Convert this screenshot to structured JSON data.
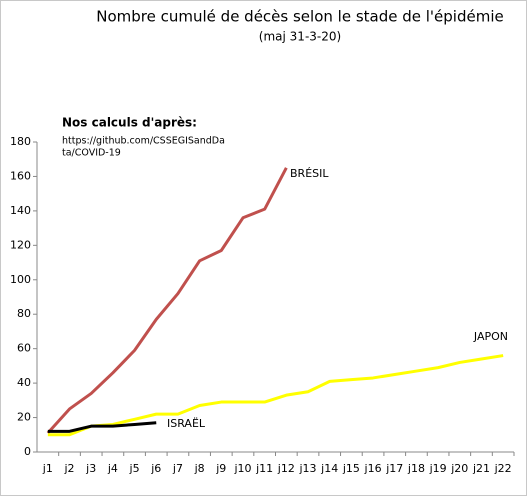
{
  "chart_data": {
    "type": "line",
    "title": "Nombre cumulé de décès selon le stade de l'épidémie",
    "subtitle": "(maj 31-3-20)",
    "annotation": {
      "heading": "Nos calculs d'après:",
      "source_lines": [
        "https://github.com/CSSEGISandDa",
        "ta/COVID-19"
      ]
    },
    "categories": [
      "j1",
      "j2",
      "j3",
      "j4",
      "j5",
      "j6",
      "j7",
      "j8",
      "j9",
      "j10",
      "j11",
      "j12",
      "j13",
      "j14",
      "j15",
      "j16",
      "j17",
      "j18",
      "j19",
      "j20",
      "j21",
      "j22"
    ],
    "series": [
      {
        "name": "BRÉSIL",
        "color": "#c0504d",
        "values": [
          11,
          25,
          34,
          46,
          59,
          77,
          92,
          111,
          117,
          136,
          141,
          165,
          null,
          null,
          null,
          null,
          null,
          null,
          null,
          null,
          null,
          null
        ]
      },
      {
        "name": "JAPON",
        "color": "#ffff00",
        "values": [
          10,
          10,
          15,
          16,
          19,
          22,
          22,
          27,
          29,
          29,
          29,
          33,
          35,
          41,
          42,
          43,
          45,
          47,
          49,
          52,
          54,
          56
        ]
      },
      {
        "name": "ISRAËL",
        "color": "#000000",
        "values": [
          12,
          12,
          15,
          15,
          16,
          17,
          null,
          null,
          null,
          null,
          null,
          null,
          null,
          null,
          null,
          null,
          null,
          null,
          null,
          null,
          null,
          null
        ]
      }
    ],
    "ylim": [
      0,
      180
    ],
    "yticks": [
      0,
      20,
      40,
      60,
      80,
      100,
      120,
      140,
      160,
      180
    ],
    "grid": false
  }
}
